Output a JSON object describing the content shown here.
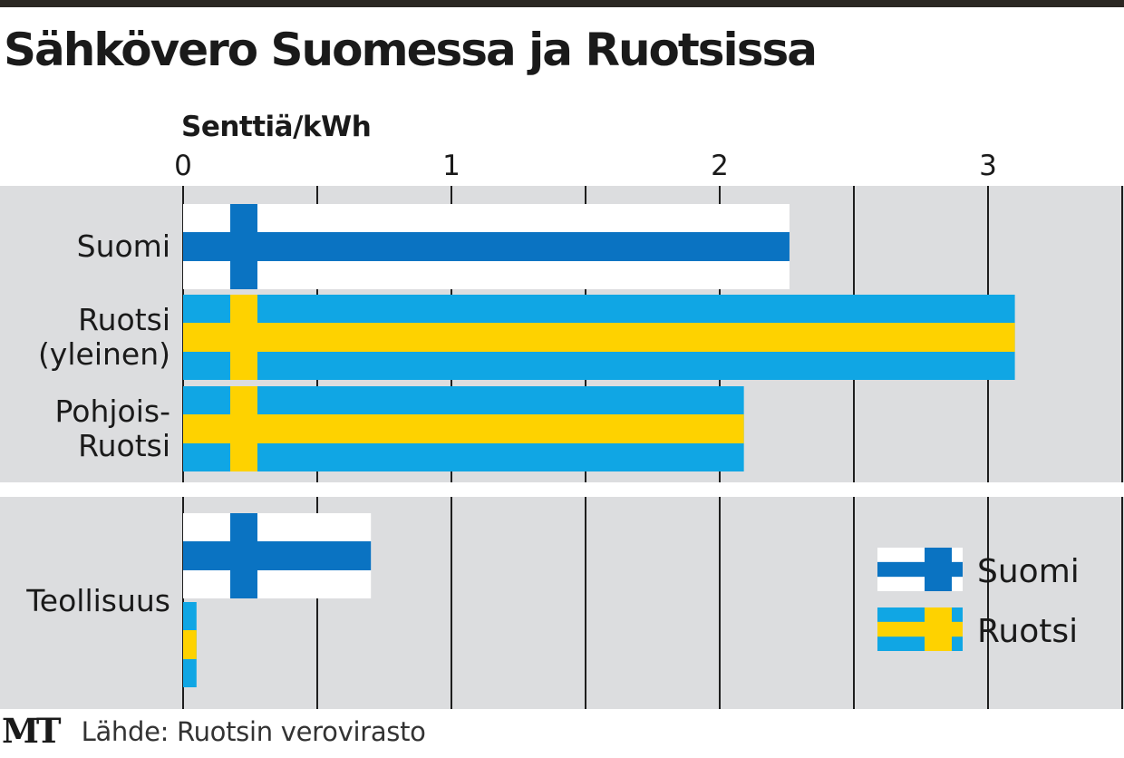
{
  "chart_data": {
    "type": "bar",
    "orientation": "horizontal",
    "title": "Sähkövero Suomessa ja Ruotsissa",
    "unit_label": "Senttiä/kWh",
    "xlim": [
      0,
      3.5
    ],
    "ticks": [
      {
        "value": 0,
        "label": "0"
      },
      {
        "value": 1,
        "label": "1"
      },
      {
        "value": 2,
        "label": "2"
      },
      {
        "value": 3,
        "label": "3"
      }
    ],
    "gridlines": [
      0,
      0.5,
      1,
      1.5,
      2,
      2.5,
      3,
      3.5
    ],
    "groups": [
      {
        "bars": [
          {
            "category": [
              "Suomi"
            ],
            "flag": "finland",
            "value": 2.26
          },
          {
            "category": [
              "Ruotsi",
              "(yleinen)"
            ],
            "flag": "sweden",
            "value": 3.1
          },
          {
            "category": [
              "Pohjois-",
              "Ruotsi"
            ],
            "flag": "sweden",
            "value": 2.09
          }
        ]
      },
      {
        "category": [
          "Teollisuus"
        ],
        "bars": [
          {
            "category": [],
            "flag": "finland",
            "value": 0.7
          },
          {
            "category": [],
            "flag": "sweden",
            "value": 0.05
          }
        ]
      }
    ],
    "legend": {
      "position": "right",
      "items": [
        {
          "name": "Suomi",
          "flag": "finland"
        },
        {
          "name": "Ruotsi",
          "flag": "sweden"
        }
      ]
    }
  },
  "colors": {
    "panel": "#dcdddf",
    "grid": "#1e1e1e",
    "finland_blue": "#0a73c2",
    "finland_white": "#ffffff",
    "sweden_blue": "#10a6e4",
    "sweden_yellow": "#fed200",
    "text": "#1a1a1a"
  },
  "footer": {
    "logo_text": "MT",
    "source": "Lähde: Ruotsin verovirasto"
  }
}
